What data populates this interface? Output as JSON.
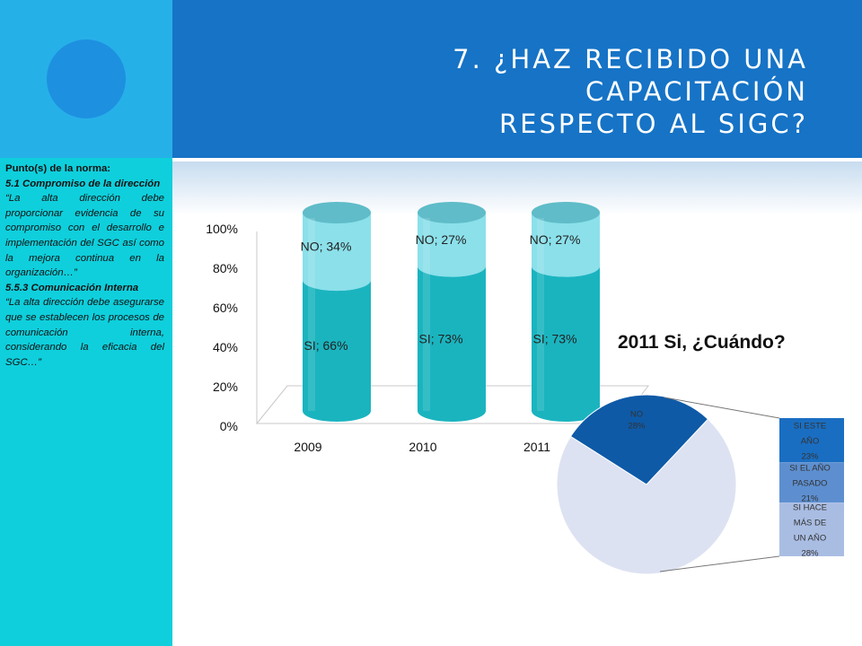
{
  "header": {
    "title_line1": "7. ¿HAZ RECIBIDO UNA CAPACITACIÓN",
    "title_line2": "RESPECTO AL SIGC?"
  },
  "sidebar": {
    "heading": "Punto(s) de la norma:",
    "clause1_title": "5.1 Compromiso de la dirección",
    "clause1_text": "“La alta dirección debe proporcionar evidencia de su compromiso con el desarrollo e implementación del SGC así como la mejora continua en la organización…”",
    "clause2_title": "5.5.3 Comunicación Interna",
    "clause2_text": "“La alta dirección debe asegurarse que se establecen los procesos de comunicación interna, considerando la eficacia del SGC…”"
  },
  "colors": {
    "header_bg": "#1673c6",
    "sidebar_bg": "#0fcfdc",
    "si_fill": "#1ab4bf",
    "no_fill": "#8be0ea",
    "pie_dark": "#0e5aa7",
    "pie_light": "#dde2f2"
  },
  "chart_data": [
    {
      "type": "bar",
      "stacked": true,
      "style": "3d-cylinder",
      "categories": [
        "2009",
        "2010",
        "2011"
      ],
      "series": [
        {
          "name": "SI",
          "values": [
            66,
            73,
            73
          ],
          "labels": [
            "SI; 66%",
            "SI; 73%",
            "SI; 73%"
          ]
        },
        {
          "name": "NO",
          "values": [
            34,
            27,
            27
          ],
          "labels": [
            "NO; 34%",
            "NO; 27%",
            "NO; 27%"
          ]
        }
      ],
      "yticks": [
        "0%",
        "20%",
        "40%",
        "60%",
        "80%",
        "100%"
      ],
      "ylim": [
        0,
        100
      ],
      "grid": false
    },
    {
      "type": "pie",
      "title": "2011 Si, ¿Cuándo?",
      "slices": [
        {
          "name": "NO",
          "value": 28,
          "label": [
            "NO",
            "28%"
          ]
        },
        {
          "name": "SI",
          "value": 72,
          "label": []
        }
      ],
      "breakdown": {
        "type": "bar",
        "stacked": true,
        "segments": [
          {
            "label": [
              "SI ESTE",
              "AÑO",
              "23%"
            ],
            "value": 23
          },
          {
            "label": [
              "SI EL AÑO",
              "PASADO",
              "21%"
            ],
            "value": 21
          },
          {
            "label": [
              "SI HACE",
              "MÁS DE",
              "UN AÑO",
              "28%"
            ],
            "value": 28
          }
        ]
      }
    }
  ]
}
